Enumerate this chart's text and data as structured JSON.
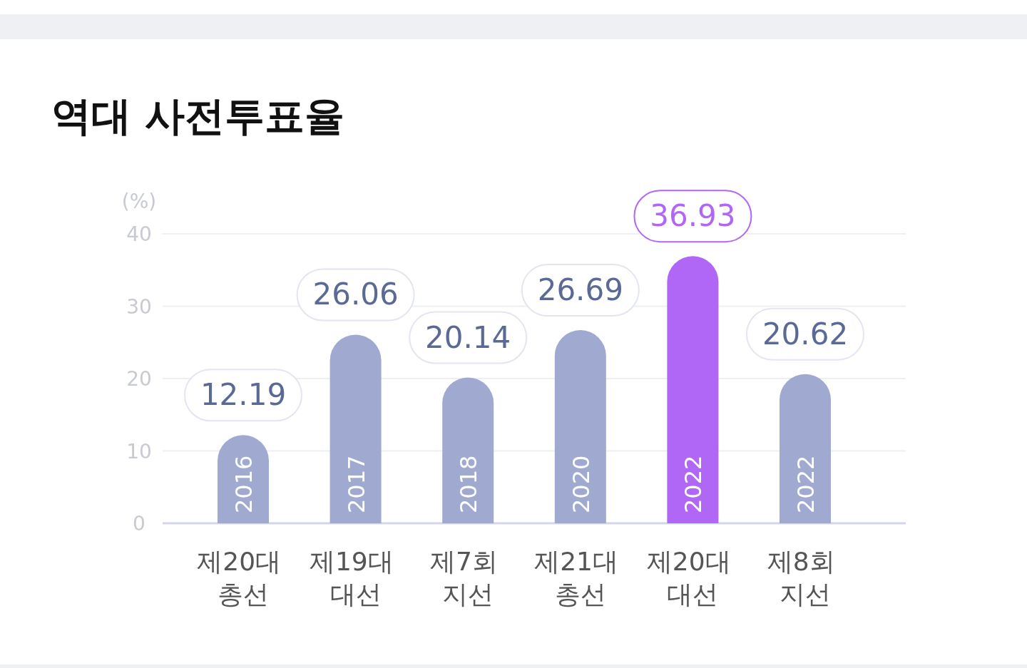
{
  "chart_data": {
    "type": "bar",
    "title": "역대 사전투표율",
    "ylabel": "(%)",
    "categories": [
      "제20대 총선",
      "제19대 대선",
      "제7회 지선",
      "제21대 총선",
      "제20대 대선",
      "제8회 지선"
    ],
    "values": [
      12.19,
      26.06,
      20.14,
      26.69,
      36.93,
      20.62
    ],
    "colors": [
      "#a0a9cf",
      "#a0a9cf",
      "#a0a9cf",
      "#a0a9cf",
      "#b067f6",
      "#a0a9cf"
    ],
    "ylim": [
      0,
      40
    ],
    "yticks": [
      0,
      10,
      20,
      30,
      40
    ],
    "grid": "y",
    "data_labels": true,
    "annotations": [
      "2016",
      "2017",
      "2018",
      "2020",
      "2022",
      "2022"
    ]
  }
}
